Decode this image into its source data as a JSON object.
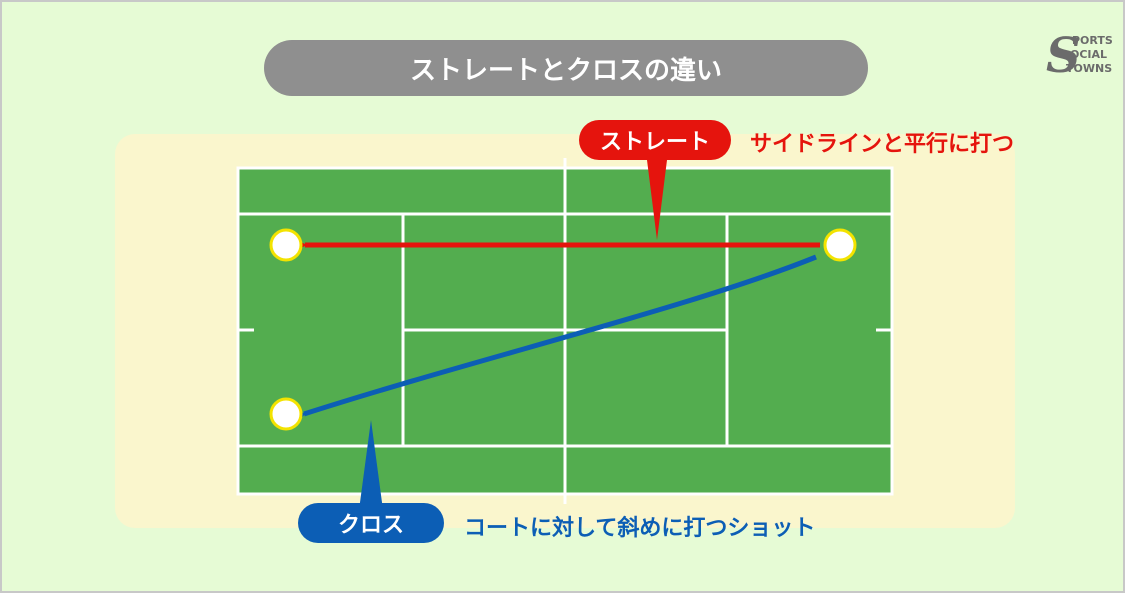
{
  "title": "ストレートとクロスの違い",
  "logo": {
    "letter": "S",
    "line1": "PORTS",
    "line2": "OCIAL",
    "line3": "TOWNS",
    "color": "#6b6b6b"
  },
  "straight": {
    "label": "ストレート",
    "description": "サイドラインと平行に打つ",
    "color": "#e5140d"
  },
  "cross": {
    "label": "クロス",
    "description": "コートに対して斜めに打つショット",
    "color": "#0c5eb5"
  },
  "colors": {
    "background": "#e6fbd5",
    "court_surround": "#faf6cd",
    "court": "#53ad4f",
    "court_lines": "#ffffff",
    "ball_fill": "#ffffff",
    "ball_outline": "#f3e300",
    "title_pill": "#8f8f8f"
  },
  "icons": {
    "ball": "tennis-ball-icon"
  }
}
